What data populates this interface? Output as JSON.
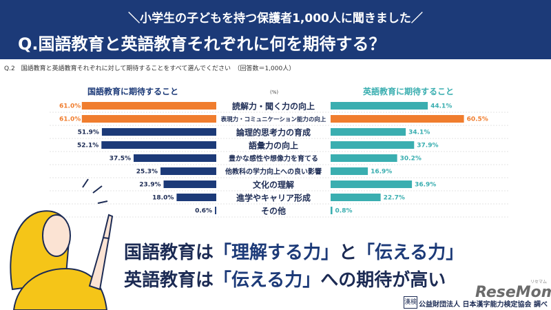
{
  "header": {
    "subtitle": "＼小学生の子どもを持つ保護者1,000人に聞きました／",
    "title": "Q.国語教育と英語教育それぞれに何を期待する？"
  },
  "question": "Q.2　国語教育と英語教育それぞれに対して期待することをすべて選んでください　（回答数＝1,000人）",
  "legend": {
    "left": "国語教育に期待すること",
    "right": "英語教育に期待すること",
    "unit": "(%)"
  },
  "chart_data": {
    "type": "bar",
    "categories": [
      "読解力・聞く力の向上",
      "表現力・コミュニケーション能力の向上",
      "論理的思考力の育成",
      "語彙力の向上",
      "豊かな感性や想像力を育てる",
      "他教科の学力向上への良い影響",
      "文化の理解",
      "進学やキャリア形成",
      "その他"
    ],
    "series": [
      {
        "name": "国語教育に期待すること",
        "values": [
          61.0,
          61.0,
          51.9,
          52.1,
          37.5,
          25.3,
          23.9,
          18.0,
          0.6
        ],
        "labels": [
          "61.0%",
          "61.0%",
          "51.9%",
          "52.1%",
          "37.5%",
          "25.3%",
          "23.9%",
          "18.0%",
          "0.6%"
        ]
      },
      {
        "name": "英語教育に期待すること",
        "values": [
          44.1,
          60.5,
          34.1,
          37.9,
          30.2,
          16.9,
          36.9,
          22.7,
          0.8
        ],
        "labels": [
          "44.1%",
          "60.5%",
          "34.1%",
          "37.9%",
          "30.2%",
          "16.9%",
          "36.9%",
          "22.7%",
          "0.8%"
        ]
      }
    ],
    "highlight": [
      0,
      1
    ],
    "colors": {
      "jp": "#1c3a78",
      "en": "#3aaeb0",
      "highlight": "#f07d2e"
    },
    "xlim": [
      0,
      65
    ]
  },
  "message": {
    "line1_a": "国語教育は",
    "line1_b": "「理解する力」",
    "line1_c": "と",
    "line1_d": "「伝える力」",
    "line2_a": "英語教育は",
    "line2_b": "「伝える力」",
    "line2_c": "への期待が高い"
  },
  "brand": {
    "logo": "ReseMom",
    "ruby": "リセマム"
  },
  "credit": {
    "mark": "漢検",
    "text": "公益財団法人 日本漢字能力検定協会 調べ"
  },
  "icons": {
    "illustration": "woman-pointing-illustration"
  }
}
